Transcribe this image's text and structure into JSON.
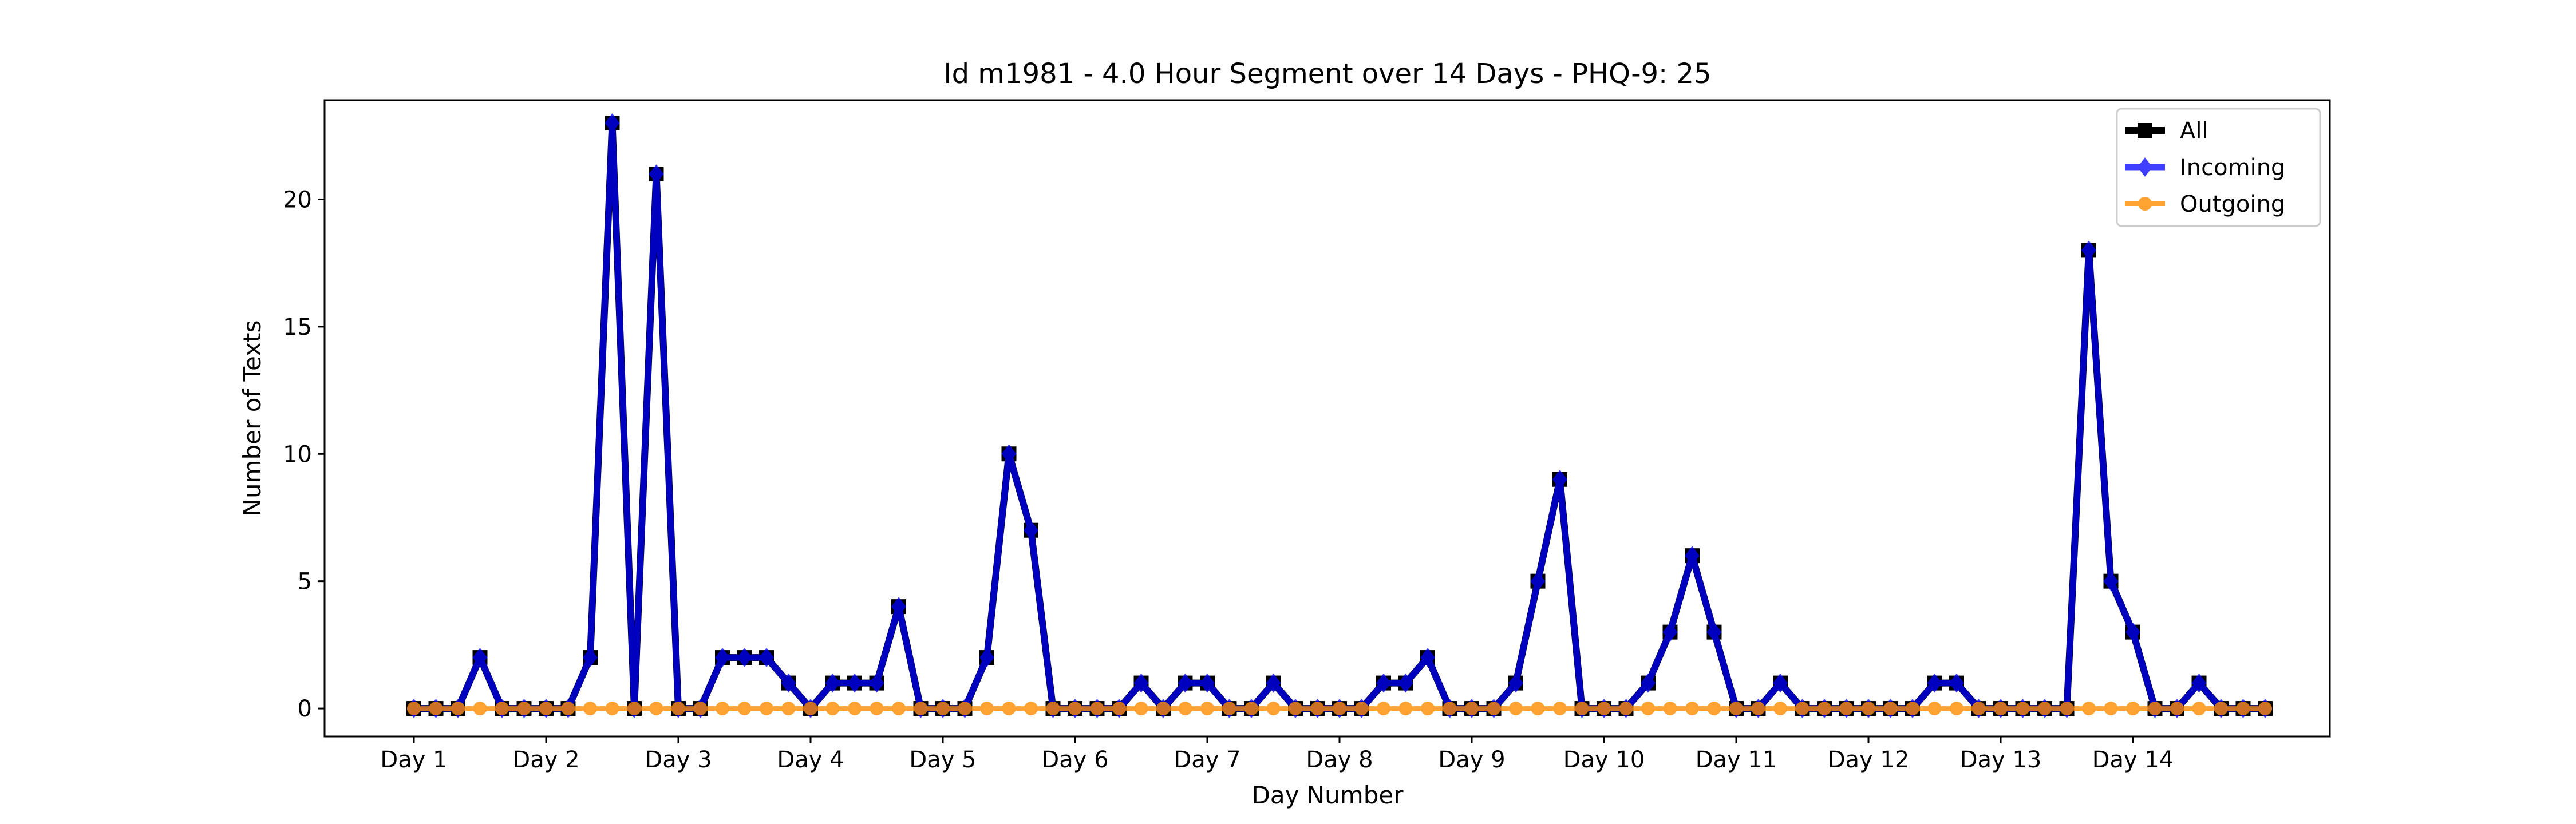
{
  "chart_data": {
    "type": "line",
    "title": "Id m1981 - 4.0 Hour Segment over 14 Days - PHQ-9: 25",
    "xlabel": "Day Number",
    "ylabel": "Number of Texts",
    "ylim": [
      -1.1,
      23.9
    ],
    "yticks": [
      0,
      5,
      10,
      15,
      20
    ],
    "xticks": [
      "Day 1",
      "Day 2",
      "Day 3",
      "Day 4",
      "Day 5",
      "Day 6",
      "Day 7",
      "Day 8",
      "Day 9",
      "Day 10",
      "Day 11",
      "Day 12",
      "Day 13",
      "Day 14"
    ],
    "points_per_day": 6,
    "grid": false,
    "legend_position": "top-right",
    "series": [
      {
        "name": "All",
        "color": "#000000",
        "marker": "square",
        "values": [
          0,
          0,
          0,
          2,
          0,
          0,
          0,
          0,
          2,
          23,
          0,
          21,
          0,
          0,
          2,
          2,
          2,
          1,
          0,
          1,
          1,
          1,
          4,
          0,
          0,
          0,
          2,
          10,
          7,
          0,
          0,
          0,
          0,
          1,
          0,
          1,
          1,
          0,
          0,
          1,
          0,
          0,
          0,
          0,
          1,
          1,
          2,
          0,
          0,
          0,
          1,
          5,
          9,
          0,
          0,
          0,
          1,
          3,
          6,
          3,
          0,
          0,
          1,
          0,
          0,
          0,
          0,
          0,
          0,
          1,
          1,
          0,
          0,
          0,
          0,
          0,
          18,
          5,
          3,
          0,
          0,
          1,
          0,
          0,
          0
        ]
      },
      {
        "name": "Incoming",
        "color": "#0000ff",
        "marker": "diamond",
        "values": [
          0,
          0,
          0,
          2,
          0,
          0,
          0,
          0,
          2,
          23,
          0,
          21,
          0,
          0,
          2,
          2,
          2,
          1,
          0,
          1,
          1,
          1,
          4,
          0,
          0,
          0,
          2,
          10,
          7,
          0,
          0,
          0,
          0,
          1,
          0,
          1,
          1,
          0,
          0,
          1,
          0,
          0,
          0,
          0,
          1,
          1,
          2,
          0,
          0,
          0,
          1,
          5,
          9,
          0,
          0,
          0,
          1,
          3,
          6,
          3,
          0,
          0,
          1,
          0,
          0,
          0,
          0,
          0,
          0,
          1,
          1,
          0,
          0,
          0,
          0,
          0,
          18,
          5,
          3,
          0,
          0,
          1,
          0,
          0,
          0
        ]
      },
      {
        "name": "Outgoing",
        "color": "#ff8c00",
        "marker": "circle",
        "values": [
          0,
          0,
          0,
          0,
          0,
          0,
          0,
          0,
          0,
          0,
          0,
          0,
          0,
          0,
          0,
          0,
          0,
          0,
          0,
          0,
          0,
          0,
          0,
          0,
          0,
          0,
          0,
          0,
          0,
          0,
          0,
          0,
          0,
          0,
          0,
          0,
          0,
          0,
          0,
          0,
          0,
          0,
          0,
          0,
          0,
          0,
          0,
          0,
          0,
          0,
          0,
          0,
          0,
          0,
          0,
          0,
          0,
          0,
          0,
          0,
          0,
          0,
          0,
          0,
          0,
          0,
          0,
          0,
          0,
          0,
          0,
          0,
          0,
          0,
          0,
          0,
          0,
          0,
          0,
          0,
          0,
          0,
          0,
          0,
          0
        ]
      }
    ]
  }
}
